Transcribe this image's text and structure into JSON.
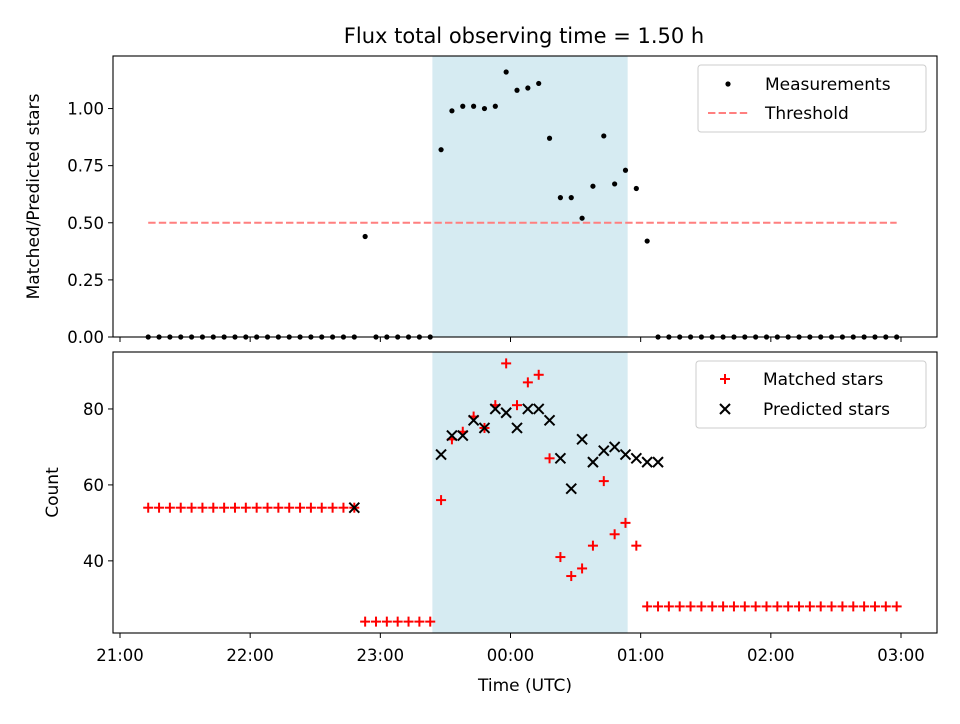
{
  "title": "Flux total observing time = 1.50 h",
  "colors": {
    "measurement": "#000000",
    "threshold": "#ff7f7f",
    "matched": "#ff0000",
    "predicted": "#000000",
    "shade": "#add8e6"
  },
  "chart_data": [
    {
      "type": "scatter",
      "panel": "top",
      "ylabel": "Matched/Predicted stars",
      "xlim": [
        "21:00",
        "03:00"
      ],
      "ylim": [
        0,
        1.23
      ],
      "yticks": [
        "0.00",
        "0.25",
        "0.50",
        "0.75",
        "1.00"
      ],
      "grid": false,
      "legend_position": "upper right",
      "shaded_interval": [
        "23:24",
        "00:54"
      ],
      "series": [
        {
          "name": "Measurements",
          "marker": "dot",
          "x": [
            "21:13",
            "21:18",
            "21:23",
            "21:28",
            "21:33",
            "21:38",
            "21:43",
            "21:48",
            "21:53",
            "21:58",
            "22:03",
            "22:08",
            "22:13",
            "22:18",
            "22:23",
            "22:28",
            "22:33",
            "22:38",
            "22:43",
            "22:48",
            "22:53",
            "22:58",
            "23:03",
            "23:08",
            "23:13",
            "23:18",
            "23:23",
            "23:28",
            "23:33",
            "23:38",
            "23:43",
            "23:48",
            "23:53",
            "23:58",
            "00:03",
            "00:08",
            "00:13",
            "00:18",
            "00:23",
            "00:28",
            "00:33",
            "00:38",
            "00:43",
            "00:48",
            "00:53",
            "00:58",
            "01:03",
            "01:08",
            "01:13",
            "01:18",
            "01:23",
            "01:28",
            "01:33",
            "01:38",
            "01:43",
            "01:48",
            "01:53",
            "01:58",
            "02:03",
            "02:08",
            "02:13",
            "02:18",
            "02:23",
            "02:28",
            "02:33",
            "02:38",
            "02:43",
            "02:48",
            "02:53",
            "02:58"
          ],
          "y": [
            0,
            0,
            0,
            0,
            0,
            0,
            0,
            0,
            0,
            0,
            0,
            0,
            0,
            0,
            0,
            0,
            0,
            0,
            0,
            0,
            0.44,
            0,
            0,
            0,
            0,
            0,
            0,
            0.82,
            0.99,
            1.01,
            1.01,
            1.0,
            1.01,
            1.16,
            1.08,
            1.09,
            1.11,
            0.87,
            0.61,
            0.61,
            0.52,
            0.66,
            0.88,
            0.67,
            0.73,
            0.65,
            0.42,
            0,
            0,
            0,
            0,
            0,
            0,
            0,
            0,
            0,
            0,
            0,
            0,
            0,
            0,
            0,
            0,
            0,
            0,
            0,
            0,
            0,
            0,
            0
          ]
        },
        {
          "name": "Threshold",
          "style": "dashed",
          "x": [
            "21:13",
            "02:58"
          ],
          "y": [
            0.5,
            0.5
          ]
        }
      ]
    },
    {
      "type": "scatter",
      "panel": "bottom",
      "xlabel": "Time (UTC)",
      "ylabel": "Count",
      "xlim": [
        "21:00",
        "03:00"
      ],
      "ylim": [
        21,
        95
      ],
      "xticks": [
        "21:00",
        "22:00",
        "23:00",
        "00:00",
        "01:00",
        "02:00",
        "03:00"
      ],
      "yticks": [
        "40",
        "60",
        "80"
      ],
      "grid": false,
      "legend_position": "upper right",
      "shaded_interval": [
        "23:24",
        "00:54"
      ],
      "series": [
        {
          "name": "Matched stars",
          "marker": "plus",
          "x": [
            "21:13",
            "21:18",
            "21:23",
            "21:28",
            "21:33",
            "21:38",
            "21:43",
            "21:48",
            "21:53",
            "21:58",
            "22:03",
            "22:08",
            "22:13",
            "22:18",
            "22:23",
            "22:28",
            "22:33",
            "22:38",
            "22:43",
            "22:48",
            "22:53",
            "22:58",
            "23:03",
            "23:08",
            "23:13",
            "23:18",
            "23:23",
            "23:28",
            "23:33",
            "23:38",
            "23:43",
            "23:48",
            "23:53",
            "23:58",
            "00:03",
            "00:08",
            "00:13",
            "00:18",
            "00:23",
            "00:28",
            "00:33",
            "00:38",
            "00:43",
            "00:48",
            "00:53",
            "00:58",
            "01:03",
            "01:08",
            "01:13",
            "01:18",
            "01:23",
            "01:28",
            "01:33",
            "01:38",
            "01:43",
            "01:48",
            "01:53",
            "01:58",
            "02:03",
            "02:08",
            "02:13",
            "02:18",
            "02:23",
            "02:28",
            "02:33",
            "02:38",
            "02:43",
            "02:48",
            "02:53",
            "02:58"
          ],
          "y": [
            54,
            54,
            54,
            54,
            54,
            54,
            54,
            54,
            54,
            54,
            54,
            54,
            54,
            54,
            54,
            54,
            54,
            54,
            54,
            54,
            24,
            24,
            24,
            24,
            24,
            24,
            24,
            56,
            72,
            74,
            78,
            75,
            81,
            92,
            81,
            87,
            89,
            67,
            41,
            36,
            38,
            44,
            61,
            47,
            50,
            44,
            28,
            28,
            28,
            28,
            28,
            28,
            28,
            28,
            28,
            28,
            28,
            28,
            28,
            28,
            28,
            28,
            28,
            28,
            28,
            28,
            28,
            28,
            28,
            28
          ]
        },
        {
          "name": "Predicted stars",
          "marker": "x",
          "x": [
            "22:48",
            "23:28",
            "23:33",
            "23:38",
            "23:43",
            "23:48",
            "23:53",
            "23:58",
            "00:03",
            "00:08",
            "00:13",
            "00:18",
            "00:23",
            "00:28",
            "00:33",
            "00:38",
            "00:43",
            "00:48",
            "00:53",
            "00:58",
            "01:03",
            "01:08"
          ],
          "y": [
            54,
            68,
            73,
            73,
            77,
            75,
            80,
            79,
            75,
            80,
            80,
            77,
            67,
            59,
            72,
            66,
            69,
            70,
            68,
            67,
            66,
            66
          ]
        }
      ]
    }
  ]
}
